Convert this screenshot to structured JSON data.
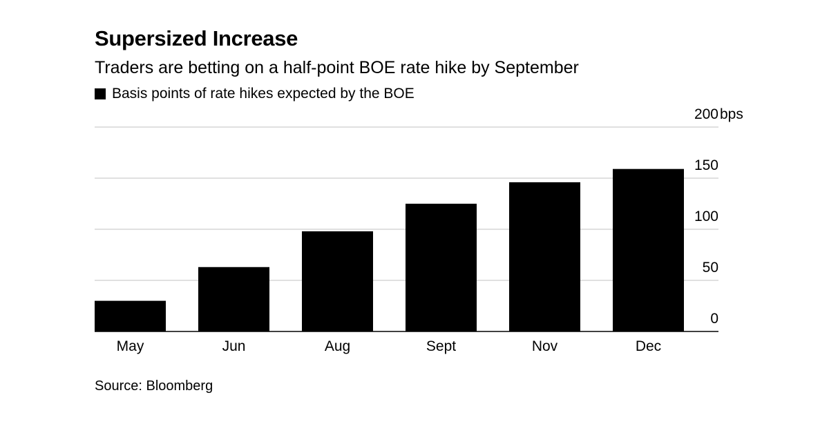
{
  "chart_data": {
    "type": "bar",
    "title": "Supersized Increase",
    "subtitle": "Traders are betting on a half-point BOE rate hike by September",
    "series": [
      {
        "name": "Basis points of rate hikes expected by the BOE",
        "values": [
          30,
          63,
          98,
          125,
          146,
          159
        ],
        "color": "#000000"
      }
    ],
    "categories": [
      "May",
      "Jun",
      "Aug",
      "Sept",
      "Nov",
      "Dec"
    ],
    "y_ticks": [
      "0",
      "50",
      "100",
      "150",
      "200"
    ],
    "y_unit": "bps",
    "ylim": [
      0,
      200
    ],
    "grid": true,
    "axis_side": "right",
    "source": "Source: Bloomberg"
  }
}
